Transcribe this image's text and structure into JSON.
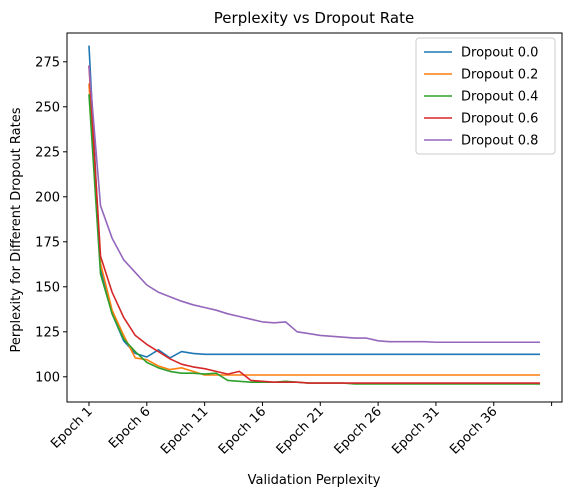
{
  "chart_data": {
    "type": "line",
    "title": "Perplexity vs Dropout Rate",
    "xlabel": "Validation Perplexity",
    "ylabel": "Perplexity for Different Dropout Rates",
    "x_tick_labels": [
      "Epoch 1",
      "Epoch 6",
      "Epoch 11",
      "Epoch 16",
      "Epoch 21",
      "Epoch 26",
      "Epoch 31",
      "Epoch 36"
    ],
    "x_tick_epochs": [
      1,
      6,
      11,
      16,
      21,
      26,
      31,
      36
    ],
    "xlim": [
      -0.9,
      41.9
    ],
    "ylim": [
      86,
      291
    ],
    "y_ticks": [
      100,
      125,
      150,
      175,
      200,
      225,
      250,
      275
    ],
    "grid": false,
    "legend_position": "top-right",
    "x": [
      1,
      2,
      3,
      4,
      5,
      6,
      7,
      8,
      9,
      10,
      11,
      12,
      13,
      14,
      15,
      16,
      17,
      18,
      19,
      20,
      21,
      22,
      23,
      24,
      25,
      26,
      27,
      28,
      29,
      30,
      31,
      32,
      33,
      34,
      35,
      36,
      37,
      38,
      39,
      40
    ],
    "series": [
      {
        "name": "Dropout 0.0",
        "color": "#1f77b4",
        "values": [
          284,
          160,
          135,
          120,
          113,
          111,
          115,
          110.5,
          114,
          113,
          112.5,
          112.5,
          112.5,
          112.5,
          112.5,
          112.5,
          112.5,
          112.5,
          112.5,
          112.5,
          112.5,
          112.5,
          112.5,
          112.5,
          112.5,
          112.5,
          112.5,
          112.5,
          112.5,
          112.5,
          112.5,
          112.5,
          112.5,
          112.5,
          112.5,
          112.5,
          112.5,
          112.5,
          112.5,
          112.5
        ]
      },
      {
        "name": "Dropout 0.2",
        "color": "#ff7f0e",
        "values": [
          263,
          163,
          137,
          123,
          110.5,
          109.5,
          106,
          104,
          105,
          103,
          101,
          101,
          101,
          101,
          101,
          101,
          101,
          101,
          101,
          101,
          101,
          101,
          101,
          101,
          101,
          101,
          101,
          101,
          101,
          101,
          101,
          101,
          101,
          101,
          101,
          101,
          101,
          101,
          101,
          101
        ]
      },
      {
        "name": "Dropout 0.4",
        "color": "#2ca02c",
        "values": [
          257,
          157,
          135,
          121,
          114,
          108,
          105,
          103,
          102,
          102,
          101.5,
          102,
          98,
          97.5,
          97,
          97,
          97,
          97.5,
          97,
          96.5,
          96.5,
          96.5,
          96.5,
          96,
          96,
          96,
          96,
          96,
          96,
          96,
          96,
          96,
          96,
          96,
          96,
          96,
          96,
          96,
          96,
          96
        ]
      },
      {
        "name": "Dropout 0.6",
        "color": "#d62728",
        "values": [
          273,
          167,
          147,
          133,
          123,
          118,
          114,
          110,
          107,
          105.5,
          104.5,
          103,
          101.5,
          103,
          98,
          97.5,
          97,
          97,
          97,
          96.5,
          96.5,
          96.5,
          96.5,
          96.5,
          96.5,
          96.5,
          96.5,
          96.5,
          96.5,
          96.5,
          96.5,
          96.5,
          96.5,
          96.5,
          96.5,
          96.5,
          96.5,
          96.5,
          96.5,
          96.5
        ]
      },
      {
        "name": "Dropout 0.8",
        "color": "#9467bd",
        "values": [
          273,
          195,
          177,
          165,
          158,
          151,
          147,
          144.5,
          142,
          140,
          138.5,
          137,
          135,
          133.5,
          132,
          130.5,
          130,
          130.5,
          125,
          124,
          123,
          122.5,
          122,
          121.5,
          121.5,
          120,
          119.5,
          119.5,
          119.5,
          119.5,
          119.2,
          119.2,
          119.2,
          119.2,
          119.2,
          119.2,
          119.2,
          119.2,
          119.2,
          119.2
        ]
      }
    ]
  }
}
